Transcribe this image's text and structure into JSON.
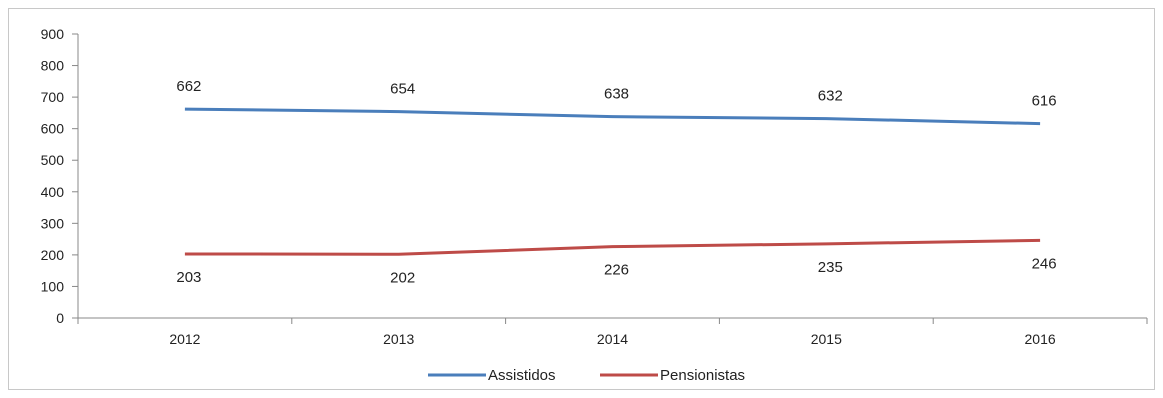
{
  "chart_data": {
    "type": "line",
    "categories": [
      "2012",
      "2013",
      "2014",
      "2015",
      "2016"
    ],
    "series": [
      {
        "name": "Assistidos",
        "color": "#4a7ebb",
        "values": [
          662,
          654,
          638,
          632,
          616
        ]
      },
      {
        "name": "Pensionistas",
        "color": "#be4b48",
        "values": [
          203,
          202,
          226,
          235,
          246
        ]
      }
    ],
    "ylim": [
      0,
      900
    ],
    "yticks": [
      0,
      100,
      200,
      300,
      400,
      500,
      600,
      700,
      800,
      900
    ],
    "grid": false,
    "legend_position": "bottom",
    "title": "",
    "xlabel": "",
    "ylabel": ""
  }
}
